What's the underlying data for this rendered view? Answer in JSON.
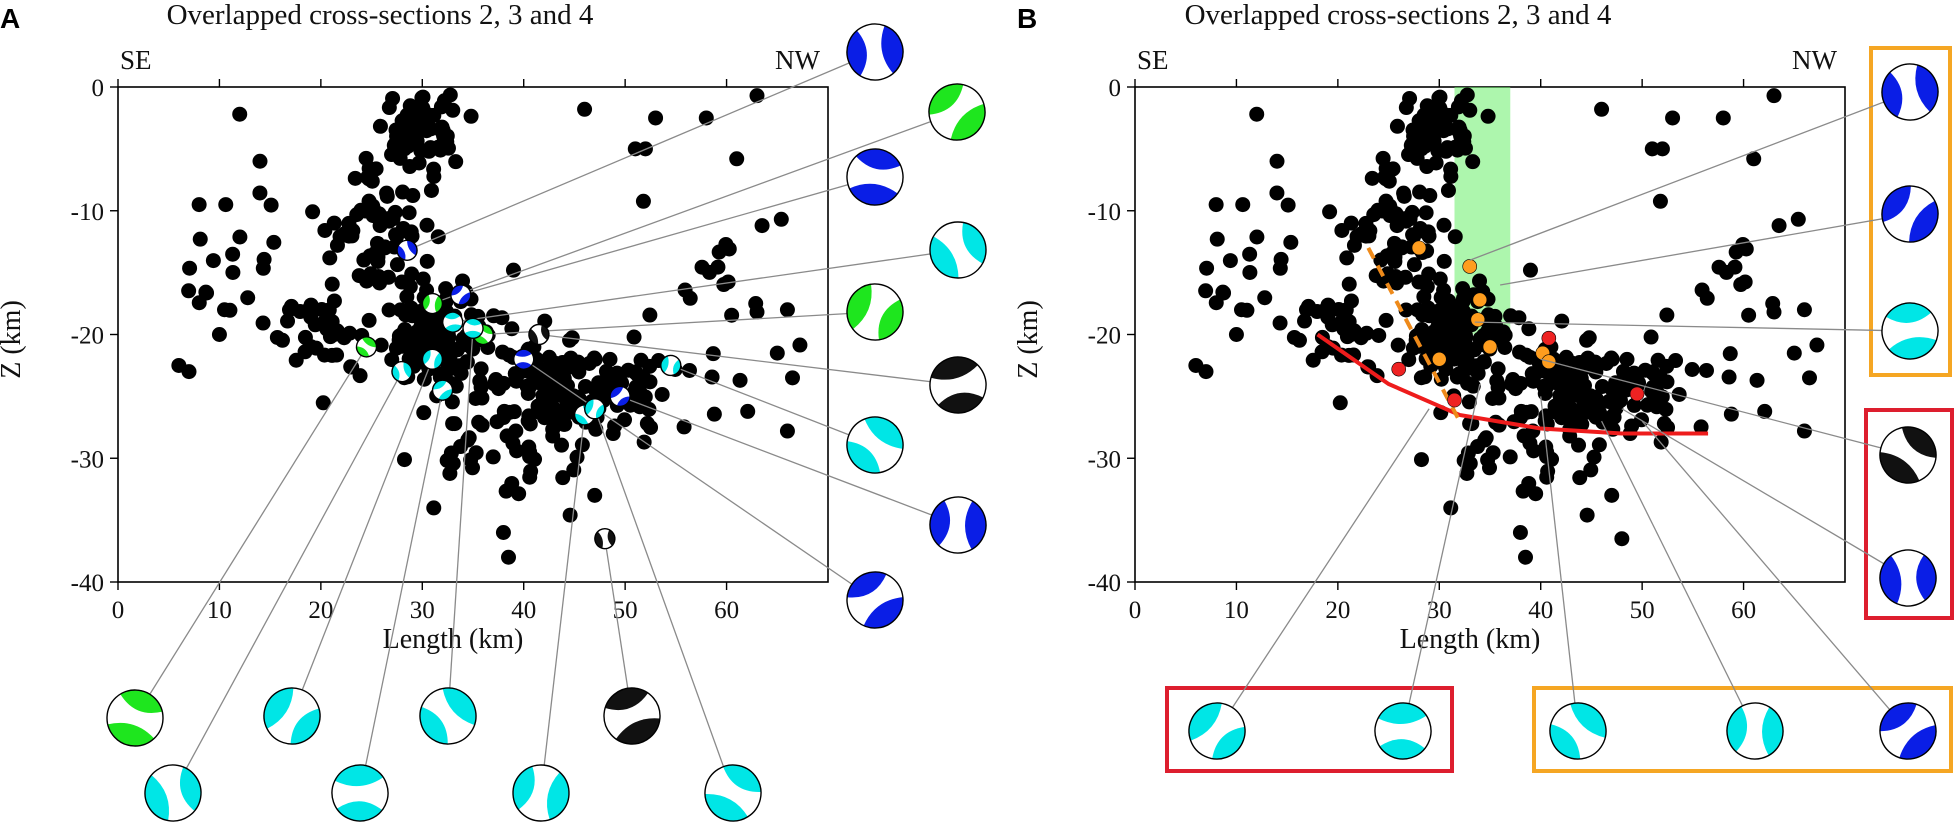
{
  "chart_data": [
    {
      "panel": "A",
      "type": "scatter",
      "title": "Overlapped cross-sections 2, 3 and 4",
      "xlabel": "Length (km)",
      "ylabel": "Z (km)",
      "xlim": [
        0,
        70
      ],
      "ylim": [
        -40,
        0
      ],
      "xticks": [
        0,
        10,
        20,
        30,
        40,
        50,
        60
      ],
      "yticks": [
        0,
        -10,
        -20,
        -30,
        -40
      ],
      "left_label": "SE",
      "right_label": "NW",
      "colors": {
        "event": "#000000",
        "blue": "#0a1ee6",
        "green": "#1ee61e",
        "cyan": "#00e6e6",
        "black": "#111111",
        "leader": "#8a8a8a"
      },
      "mechanisms": [
        {
          "x": 28.5,
          "z": -13.2,
          "color": "blue",
          "label_side": "right"
        },
        {
          "x": 31.0,
          "z": -17.5,
          "color": "green",
          "label_side": "right"
        },
        {
          "x": 33.8,
          "z": -16.8,
          "color": "blue",
          "label_side": "right"
        },
        {
          "x": 33.0,
          "z": -19.0,
          "color": "cyan",
          "label_side": "right"
        },
        {
          "x": 36.0,
          "z": -20.0,
          "color": "green",
          "label_side": "right"
        },
        {
          "x": 41.5,
          "z": -20.0,
          "color": "black",
          "label_side": "right"
        },
        {
          "x": 54.5,
          "z": -22.5,
          "color": "cyan",
          "label_side": "right"
        },
        {
          "x": 49.5,
          "z": -25.0,
          "color": "blue",
          "label_side": "right"
        },
        {
          "x": 40.0,
          "z": -22.0,
          "color": "blue",
          "label_side": "right"
        },
        {
          "x": 24.5,
          "z": -21.0,
          "color": "green",
          "label_side": "bottom"
        },
        {
          "x": 28.0,
          "z": -23.0,
          "color": "cyan",
          "label_side": "bottom"
        },
        {
          "x": 31.0,
          "z": -22.0,
          "color": "cyan",
          "label_side": "bottom"
        },
        {
          "x": 32.0,
          "z": -24.5,
          "color": "cyan",
          "label_side": "bottom"
        },
        {
          "x": 35.0,
          "z": -19.5,
          "color": "cyan",
          "label_side": "bottom"
        },
        {
          "x": 46.0,
          "z": -26.5,
          "color": "cyan",
          "label_side": "bottom"
        },
        {
          "x": 48.0,
          "z": -36.5,
          "color": "black",
          "label_side": "bottom"
        },
        {
          "x": 47.0,
          "z": -26.0,
          "color": "cyan",
          "label_side": "bottom"
        }
      ]
    },
    {
      "panel": "B",
      "type": "scatter",
      "title": "Overlapped cross-sections 2, 3 and 4",
      "xlabel": "Length (km)",
      "ylabel": "Z (km)",
      "xlim": [
        0,
        70
      ],
      "ylim": [
        -40,
        0
      ],
      "xticks": [
        0,
        10,
        20,
        30,
        40,
        50,
        60
      ],
      "yticks": [
        0,
        -10,
        -20,
        -30,
        -40
      ],
      "left_label": "SE",
      "right_label": "NW",
      "colors": {
        "event": "#000000",
        "band": "#6aef6a",
        "fault": "#ee1c1c",
        "dashed_fault": "#ee8a1a",
        "orange_event": "#ff9d1e",
        "red_event": "#ee2222",
        "orange_box": "#f5a623",
        "red_box": "#dd1e2e"
      },
      "green_band_x": [
        31.5,
        37.0
      ],
      "green_band_z": [
        -20,
        0
      ],
      "fault_curve": {
        "x": [
          18.0,
          25.0,
          32.0,
          40.0,
          48.0,
          56.5
        ],
        "z": [
          -20.0,
          -24.0,
          -26.5,
          -27.6,
          -28.0,
          -28.0
        ]
      },
      "dashed_fault": {
        "x": [
          23.0,
          32.0
        ],
        "z": [
          -13.0,
          -27.0
        ]
      },
      "orange_events": [
        {
          "x": 28.0,
          "z": -13.0
        },
        {
          "x": 33.0,
          "z": -14.5
        },
        {
          "x": 34.0,
          "z": -17.2
        },
        {
          "x": 33.8,
          "z": -18.8
        },
        {
          "x": 35.0,
          "z": -21.0
        },
        {
          "x": 30.0,
          "z": -22.0
        },
        {
          "x": 40.2,
          "z": -21.5
        },
        {
          "x": 40.8,
          "z": -22.2
        }
      ],
      "red_events": [
        {
          "x": 26.0,
          "z": -22.8
        },
        {
          "x": 31.5,
          "z": -25.3
        },
        {
          "x": 40.8,
          "z": -20.3
        },
        {
          "x": 49.5,
          "z": -24.8
        }
      ],
      "mechanisms": [
        {
          "color": "blue",
          "group": "orange",
          "label_side": "right"
        },
        {
          "color": "blue",
          "group": "orange",
          "label_side": "right"
        },
        {
          "color": "cyan",
          "group": "orange",
          "label_side": "right"
        },
        {
          "color": "black",
          "group": "red",
          "label_side": "right"
        },
        {
          "color": "blue",
          "group": "red",
          "label_side": "right"
        },
        {
          "color": "cyan",
          "group": "red",
          "label_side": "bottom"
        },
        {
          "color": "cyan",
          "group": "red",
          "label_side": "bottom"
        },
        {
          "color": "cyan",
          "group": "orange",
          "label_side": "bottom"
        },
        {
          "color": "cyan",
          "group": "orange",
          "label_side": "bottom"
        },
        {
          "color": "blue",
          "group": "orange",
          "label_side": "bottom"
        }
      ]
    }
  ]
}
